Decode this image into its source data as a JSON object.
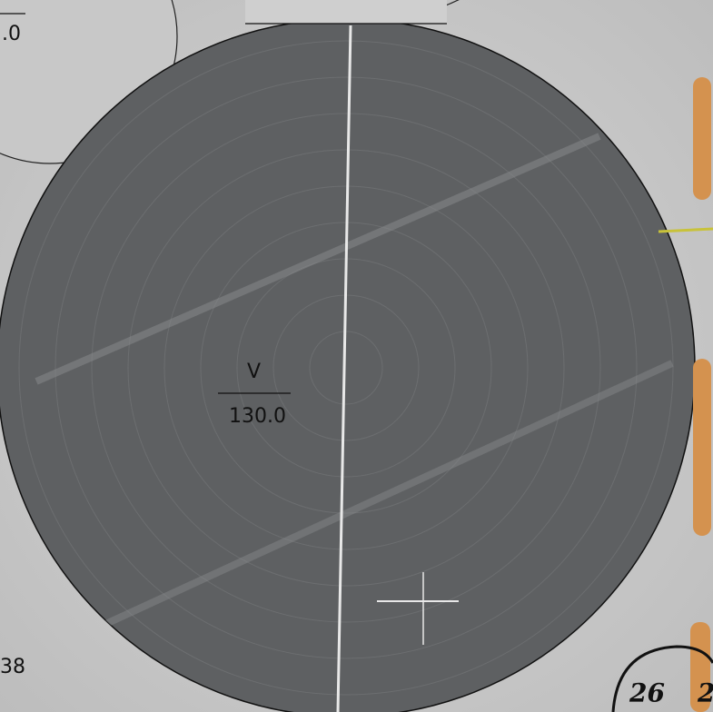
{
  "annotations": {
    "field_label": "V",
    "field_value": "130.0",
    "top_left_value": ".0",
    "bottom_left_value": "38",
    "section_number": "26",
    "section_number_partial": "2"
  }
}
